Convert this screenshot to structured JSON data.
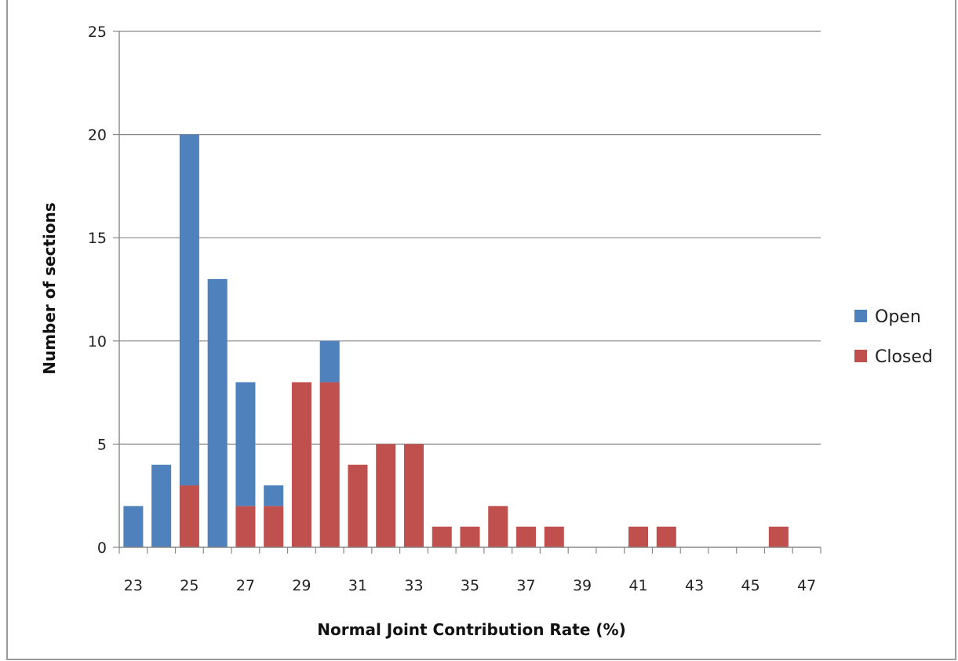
{
  "chart_data": {
    "type": "bar",
    "stacked": true,
    "title": "",
    "xlabel": "Normal Joint Contribution Rate (%)",
    "ylabel": "Number of sections",
    "ylim": [
      0,
      25
    ],
    "yticks": [
      0,
      5,
      10,
      15,
      20,
      25
    ],
    "grid": true,
    "legend_position": "right",
    "categories": [
      23,
      24,
      25,
      26,
      27,
      28,
      29,
      30,
      31,
      32,
      33,
      34,
      35,
      36,
      37,
      38,
      39,
      40,
      41,
      42,
      43,
      44,
      45,
      46,
      47
    ],
    "x_tick_labels": [
      "23",
      "25",
      "27",
      "29",
      "31",
      "33",
      "35",
      "37",
      "39",
      "41",
      "43",
      "45",
      "47"
    ],
    "series": [
      {
        "name": "Closed",
        "color": "#c0504d",
        "values": [
          0,
          0,
          3,
          0,
          2,
          2,
          8,
          8,
          4,
          5,
          5,
          1,
          1,
          2,
          1,
          1,
          0,
          0,
          1,
          1,
          0,
          0,
          0,
          1,
          0
        ]
      },
      {
        "name": "Open",
        "color": "#4f81bd",
        "values": [
          2,
          4,
          17,
          13,
          6,
          1,
          0,
          2,
          0,
          0,
          0,
          0,
          0,
          0,
          0,
          0,
          0,
          0,
          0,
          0,
          0,
          0,
          0,
          0,
          0
        ]
      }
    ],
    "legend": [
      {
        "name": "Open",
        "color": "#4f81bd"
      },
      {
        "name": "Closed",
        "color": "#c0504d"
      }
    ]
  }
}
